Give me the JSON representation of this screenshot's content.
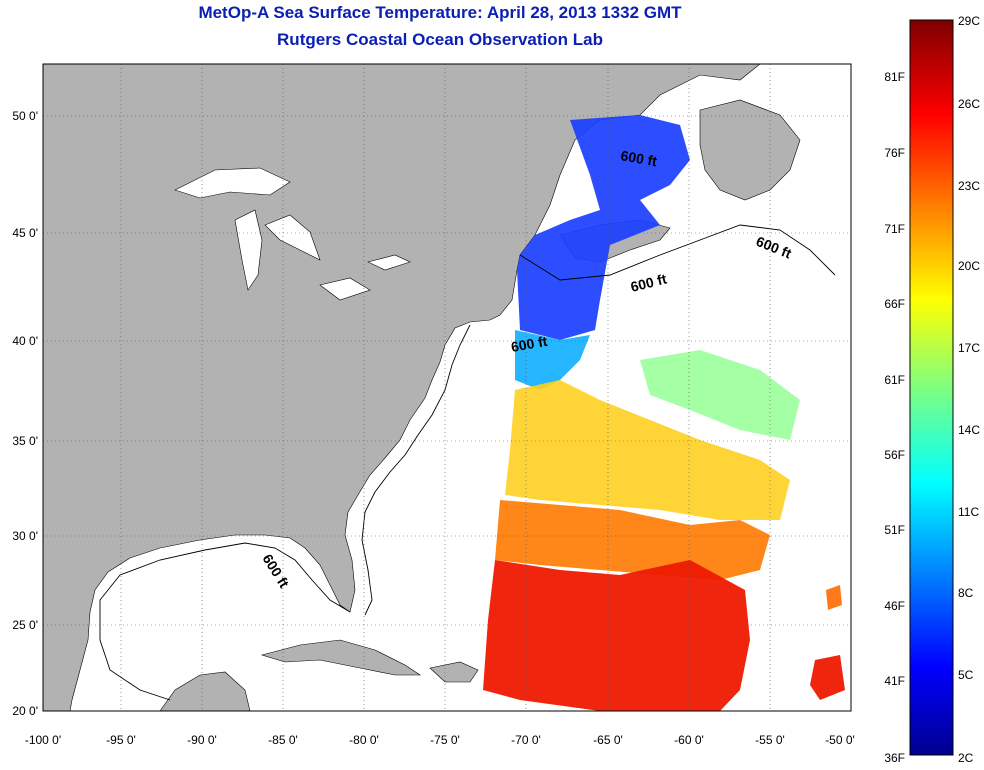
{
  "title": {
    "line1": "MetOp-A Sea Surface Temperature:  April 28, 2013 1332 GMT",
    "line2": "Rutgers Coastal Ocean Observation Lab"
  },
  "axes": {
    "lon_labels": [
      "-100 0'",
      "-95 0'",
      "-90 0'",
      "-85 0'",
      "-80 0'",
      "-75 0'",
      "-70 0'",
      "-65 0'",
      "-60 0'",
      "-55 0'",
      "-50 0'"
    ],
    "lat_labels": [
      "50 0'",
      "45 0'",
      "40 0'",
      "35 0'",
      "30 0'",
      "25 0'",
      "20 0'"
    ]
  },
  "contour_labels": [
    "600 ft",
    "600 ft",
    "600 ft",
    "600 ft",
    "600 ft"
  ],
  "colorbar": {
    "fahrenheit": [
      "81F",
      "76F",
      "71F",
      "66F",
      "61F",
      "56F",
      "51F",
      "46F",
      "41F",
      "36F"
    ],
    "celsius": [
      "29C",
      "26C",
      "23C",
      "20C",
      "17C",
      "14C",
      "11C",
      "8C",
      "5C",
      "2C"
    ]
  },
  "colors": {
    "title": "#0b1fb3",
    "land": "#b2b2b2",
    "ocean": "#ffffff",
    "cold": "#0000c8",
    "warm": "#e41a00"
  }
}
